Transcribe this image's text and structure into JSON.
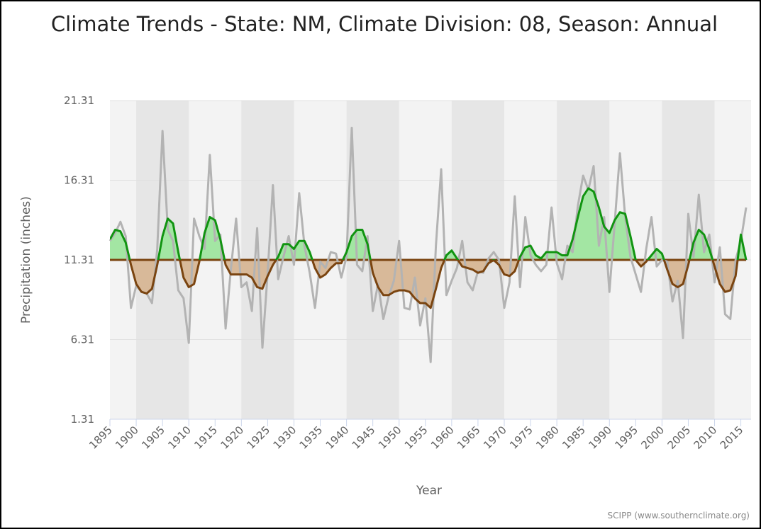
{
  "chart_data": {
    "type": "line",
    "title": "Climate Trends - State: NM, Climate Division: 08, Season: Annual",
    "y_label": "Precipitation (inches)",
    "x_label": "Year",
    "credit": "SCIPP (www.southernclimate.org)",
    "x": [
      1895,
      1896,
      1897,
      1898,
      1899,
      1900,
      1901,
      1902,
      1903,
      1904,
      1905,
      1906,
      1907,
      1908,
      1909,
      1910,
      1911,
      1912,
      1913,
      1914,
      1915,
      1916,
      1917,
      1918,
      1919,
      1920,
      1921,
      1922,
      1923,
      1924,
      1925,
      1926,
      1927,
      1928,
      1929,
      1930,
      1931,
      1932,
      1933,
      1934,
      1935,
      1936,
      1937,
      1938,
      1939,
      1940,
      1941,
      1942,
      1943,
      1944,
      1945,
      1946,
      1947,
      1948,
      1949,
      1950,
      1951,
      1952,
      1953,
      1954,
      1955,
      1956,
      1957,
      1958,
      1959,
      1960,
      1961,
      1962,
      1963,
      1964,
      1965,
      1966,
      1967,
      1968,
      1969,
      1970,
      1971,
      1972,
      1973,
      1974,
      1975,
      1976,
      1977,
      1978,
      1979,
      1980,
      1981,
      1982,
      1983,
      1984,
      1985,
      1986,
      1987,
      1988,
      1989,
      1990,
      1991,
      1992,
      1993,
      1994,
      1995,
      1996,
      1997,
      1998,
      1999,
      2000,
      2001,
      2002,
      2003,
      2004,
      2005,
      2006,
      2007,
      2008,
      2009,
      2010,
      2011,
      2012,
      2013,
      2014,
      2015,
      2016
    ],
    "baseline": 11.31,
    "series": [
      {
        "color": "#b3b3b3",
        "values": [
          12.5,
          13.0,
          13.7,
          12.8,
          8.3,
          9.7,
          9.3,
          9.2,
          8.6,
          12.0,
          19.4,
          13.2,
          12.5,
          9.4,
          8.9,
          6.1,
          13.9,
          12.8,
          12.0,
          17.9,
          12.5,
          12.9,
          7.0,
          10.7,
          13.9,
          9.6,
          9.9,
          8.1,
          13.3,
          5.8,
          10.5,
          16.0,
          10.1,
          11.5,
          12.8,
          11.0,
          15.5,
          12.2,
          10.5,
          8.3,
          11.2,
          10.8,
          11.8,
          11.7,
          10.2,
          11.5,
          19.6,
          11.0,
          10.6,
          12.8,
          8.1,
          9.8,
          7.6,
          9.0,
          10.0,
          12.5,
          8.3,
          8.2,
          10.2,
          7.2,
          8.9,
          4.9,
          12.2,
          17.0,
          9.1,
          10.0,
          10.8,
          12.5,
          9.9,
          9.4,
          10.6,
          10.5,
          11.4,
          11.8,
          11.3,
          8.3,
          9.9,
          15.3,
          9.6,
          14.0,
          11.6,
          11.0,
          10.6,
          11.0,
          14.6,
          11.1,
          10.1,
          12.2,
          11.8,
          14.7,
          16.6,
          15.7,
          17.2,
          12.2,
          14.0,
          9.3,
          13.6,
          18.0,
          14.0,
          11.5,
          10.4,
          9.3,
          12.0,
          14.0,
          10.9,
          11.3,
          11.2,
          8.7,
          10.0,
          6.4,
          14.2,
          11.5,
          15.4,
          11.8,
          12.9,
          9.9,
          12.1,
          7.9,
          7.6,
          11.3,
          12.5,
          14.6
        ]
      },
      {
        "color_above": "#119411",
        "color_below": "#7a4410",
        "fill_above": "#a3e6a3",
        "fill_below": "#d8b999",
        "values": [
          12.6,
          13.2,
          13.1,
          12.4,
          11.0,
          9.8,
          9.3,
          9.2,
          9.5,
          11.0,
          12.8,
          13.9,
          13.6,
          11.8,
          10.2,
          9.6,
          9.8,
          11.2,
          13.0,
          14.0,
          13.8,
          12.6,
          11.0,
          10.4,
          10.4,
          10.4,
          10.4,
          10.2,
          9.6,
          9.5,
          10.3,
          11.0,
          11.5,
          12.3,
          12.3,
          12.0,
          12.5,
          12.5,
          11.8,
          10.8,
          10.2,
          10.4,
          10.8,
          11.1,
          11.1,
          11.8,
          12.8,
          13.2,
          13.2,
          12.3,
          10.5,
          9.6,
          9.1,
          9.1,
          9.3,
          9.4,
          9.4,
          9.3,
          8.9,
          8.6,
          8.6,
          8.3,
          9.5,
          10.8,
          11.6,
          11.9,
          11.4,
          10.9,
          10.8,
          10.7,
          10.5,
          10.6,
          11.1,
          11.3,
          11.0,
          10.4,
          10.3,
          10.6,
          11.5,
          12.1,
          12.2,
          11.6,
          11.4,
          11.8,
          11.8,
          11.8,
          11.6,
          11.6,
          12.6,
          14.0,
          15.3,
          15.8,
          15.6,
          14.6,
          13.4,
          13.0,
          13.8,
          14.3,
          14.2,
          12.8,
          11.3,
          10.9,
          11.2,
          11.6,
          12.0,
          11.7,
          10.7,
          9.8,
          9.6,
          9.8,
          11.0,
          12.4,
          13.2,
          12.9,
          12.0,
          10.9,
          9.8,
          9.3,
          9.4,
          10.3,
          12.9,
          11.3
        ]
      }
    ],
    "baseline_color": "#7a4410",
    "xlim": [
      1895,
      2016
    ],
    "xticks": [
      1895,
      1900,
      1905,
      1910,
      1915,
      1920,
      1925,
      1930,
      1935,
      1940,
      1945,
      1950,
      1955,
      1960,
      1965,
      1970,
      1975,
      1980,
      1985,
      1990,
      1995,
      2000,
      2005,
      2010,
      2015
    ],
    "ylim": [
      1.31,
      21.31
    ],
    "yticks": [
      1.31,
      6.31,
      11.31,
      16.31,
      21.31
    ],
    "grid": true
  }
}
